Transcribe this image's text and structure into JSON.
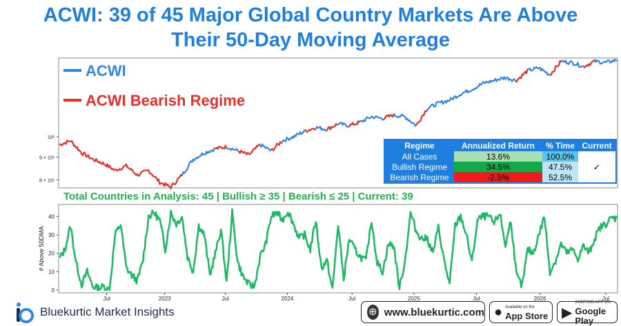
{
  "title_line1": "ACWI: 39 of 45 Major Global Country Markets Are Above",
  "title_line2": "Their 50-Day Moving Average",
  "legend": {
    "acwi": "ACWI",
    "bearish": "ACWI Bearish Regime",
    "acwi_color": "#2f86e6",
    "bearish_color": "#e8302a"
  },
  "colors": {
    "title": "#1f7fe0",
    "breadth_line": "#1fb864",
    "subtitle": "#22b24c"
  },
  "regime_table": {
    "headers": [
      "Regime",
      "Annualized Return",
      "% Time",
      "Current"
    ],
    "rows": [
      {
        "regime": "All Cases",
        "return": "13.6%",
        "time": "100.0%",
        "current": ""
      },
      {
        "regime": "Bullish Regime",
        "return": "34.5%",
        "time": "47.5%",
        "current": "✓"
      },
      {
        "regime": "Bearish Regime",
        "return": "-2.5%",
        "time": "52.5%",
        "current": ""
      }
    ]
  },
  "subtitle": "Total Countries in Analysis: 45 | Bullish ≥ 35 | Bearish ≤ 25 | Current: 39",
  "footer": {
    "brand": "Bluekurtic Market Insights",
    "website": "www.bluekurtic.com",
    "appstore_small": "Available on the",
    "appstore_big": "App Store",
    "google_small": "ANDROID APP ON",
    "google_big": "Google Play"
  },
  "chart_data": [
    {
      "type": "line",
      "scale": "log",
      "series": [
        {
          "name": "ACWI"
        },
        {
          "name": "ACWI Bearish Regime"
        }
      ],
      "yticks": [
        "8 × 10¹",
        "9 × 10¹",
        "10²"
      ],
      "ytick_values": [
        80,
        90,
        100
      ],
      "ylim": [
        77,
        150
      ],
      "x_points": [
        0,
        0.02,
        0.04,
        0.06,
        0.08,
        0.1,
        0.12,
        0.14,
        0.16,
        0.18,
        0.2,
        0.22,
        0.24,
        0.26,
        0.28,
        0.3,
        0.32,
        0.34,
        0.36,
        0.38,
        0.4,
        0.42,
        0.44,
        0.46,
        0.48,
        0.5,
        0.52,
        0.54,
        0.56,
        0.58,
        0.6,
        0.62,
        0.64,
        0.66,
        0.68,
        0.7,
        0.72,
        0.74,
        0.76,
        0.78,
        0.8,
        0.82,
        0.84,
        0.86,
        0.88,
        0.9,
        0.92,
        0.94,
        0.96,
        0.98,
        1.0
      ],
      "values": [
        96,
        98,
        92,
        89,
        87,
        84,
        86,
        82,
        84,
        79,
        77,
        82,
        89,
        92,
        94,
        95,
        93,
        91,
        96,
        93,
        98,
        100,
        103,
        105,
        104,
        107,
        106,
        108,
        111,
        110,
        112,
        111,
        106,
        116,
        119,
        121,
        125,
        128,
        132,
        134,
        136,
        134,
        141,
        143,
        138,
        148,
        147,
        144,
        148,
        147,
        149
      ],
      "bearish_flags": [
        1,
        1,
        1,
        1,
        1,
        1,
        1,
        1,
        1,
        1,
        1,
        0,
        0,
        0,
        1,
        0,
        1,
        1,
        0,
        1,
        0,
        0,
        1,
        0,
        1,
        0,
        1,
        0,
        0,
        1,
        0,
        0,
        1,
        0,
        0,
        0,
        0,
        0,
        0,
        0,
        0,
        1,
        0,
        0,
        1,
        0,
        0,
        1,
        0,
        0,
        0
      ]
    },
    {
      "type": "line",
      "ylabel": "# Above 50DMA",
      "yticks": [
        0,
        10,
        20,
        30,
        40
      ],
      "ylim": [
        0,
        45
      ],
      "xticks": [
        "Jul",
        "2023",
        "Jul",
        "2024",
        "Jul",
        "2025",
        "Jul",
        "2026",
        "Jul"
      ],
      "xtick_positions": [
        0.085,
        0.189,
        0.298,
        0.409,
        0.525,
        0.636,
        0.748,
        0.862,
        0.98
      ],
      "x_points": [
        0,
        0.01,
        0.02,
        0.03,
        0.04,
        0.05,
        0.06,
        0.07,
        0.08,
        0.09,
        0.1,
        0.11,
        0.12,
        0.13,
        0.14,
        0.15,
        0.16,
        0.17,
        0.18,
        0.19,
        0.2,
        0.21,
        0.22,
        0.23,
        0.24,
        0.25,
        0.26,
        0.27,
        0.28,
        0.29,
        0.3,
        0.31,
        0.32,
        0.33,
        0.34,
        0.35,
        0.36,
        0.37,
        0.38,
        0.39,
        0.4,
        0.41,
        0.42,
        0.43,
        0.44,
        0.45,
        0.46,
        0.47,
        0.48,
        0.49,
        0.5,
        0.51,
        0.52,
        0.53,
        0.54,
        0.55,
        0.56,
        0.57,
        0.58,
        0.59,
        0.6,
        0.61,
        0.62,
        0.63,
        0.64,
        0.65,
        0.66,
        0.67,
        0.68,
        0.69,
        0.7,
        0.71,
        0.72,
        0.73,
        0.74,
        0.75,
        0.76,
        0.77,
        0.78,
        0.79,
        0.8,
        0.81,
        0.82,
        0.83,
        0.84,
        0.85,
        0.86,
        0.87,
        0.88,
        0.89,
        0.9,
        0.91,
        0.92,
        0.93,
        0.94,
        0.95,
        0.96,
        0.97,
        0.98,
        0.99,
        1.0
      ],
      "values": [
        17,
        22,
        35,
        15,
        3,
        10,
        2,
        1,
        2,
        0,
        30,
        36,
        12,
        8,
        5,
        16,
        40,
        42,
        38,
        22,
        42,
        36,
        40,
        18,
        10,
        35,
        30,
        8,
        20,
        33,
        4,
        42,
        15,
        7,
        3,
        2,
        18,
        25,
        40,
        42,
        38,
        43,
        36,
        28,
        30,
        22,
        38,
        12,
        16,
        0,
        36,
        6,
        28,
        22,
        18,
        16,
        38,
        15,
        10,
        25,
        24,
        1,
        16,
        42,
        32,
        28,
        28,
        20,
        34,
        16,
        3,
        35,
        40,
        30,
        15,
        38,
        40,
        40,
        36,
        42,
        24,
        38,
        8,
        2,
        22,
        20,
        30,
        40,
        10,
        16,
        25,
        20,
        22,
        17,
        24,
        20,
        28,
        34,
        36,
        39,
        39
      ]
    }
  ]
}
